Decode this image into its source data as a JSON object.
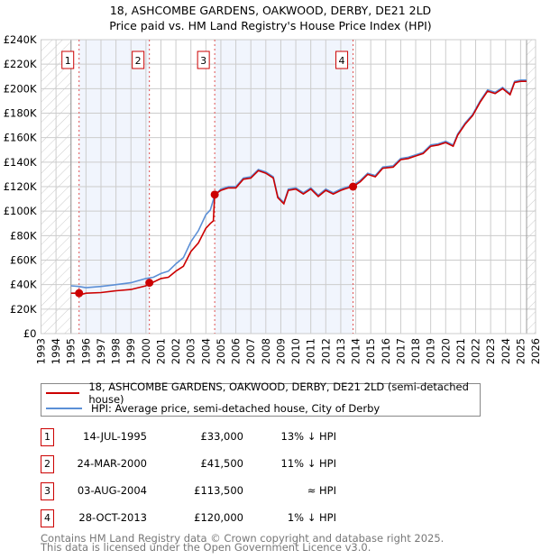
{
  "chart_data": {
    "type": "line",
    "title": "18, ASHCOMBE GARDENS, OAKWOOD, DERBY, DE21 2LD",
    "subtitle": "Price paid vs. HM Land Registry's House Price Index (HPI)",
    "xlim": [
      1993,
      2026
    ],
    "ylim": [
      0,
      240000
    ],
    "x_ticks": [
      "1993",
      "1994",
      "1995",
      "1996",
      "1997",
      "1998",
      "1999",
      "2000",
      "2001",
      "2002",
      "2003",
      "2004",
      "2005",
      "2006",
      "2007",
      "2008",
      "2009",
      "2010",
      "2011",
      "2012",
      "2013",
      "2014",
      "2015",
      "2016",
      "2017",
      "2018",
      "2019",
      "2020",
      "2021",
      "2022",
      "2023",
      "2024",
      "2025",
      "2026"
    ],
    "y_ticks": [
      "£0",
      "£20K",
      "£40K",
      "£60K",
      "£80K",
      "£100K",
      "£120K",
      "£140K",
      "£160K",
      "£180K",
      "£200K",
      "£220K",
      "£240K"
    ],
    "grid": true,
    "data_range": [
      1995.0,
      2025.4
    ],
    "shaded_periods": [
      [
        1995.54,
        2000.23
      ],
      [
        2004.59,
        2013.82
      ]
    ],
    "series": [
      {
        "name": "18, ASHCOMBE GARDENS, OAKWOOD, DERBY, DE21 2LD (semi-detached house)",
        "color": "#cc0000",
        "points": [
          [
            1995.0,
            33000
          ],
          [
            1995.5,
            33000
          ],
          [
            1995.7,
            32000
          ],
          [
            1996,
            33000
          ],
          [
            1997,
            33500
          ],
          [
            1998,
            35000
          ],
          [
            1999,
            36000
          ],
          [
            2000,
            39000
          ],
          [
            2000.23,
            41500
          ],
          [
            2000.5,
            42000
          ],
          [
            2001,
            45000
          ],
          [
            2001.5,
            46000
          ],
          [
            2002,
            51000
          ],
          [
            2002.5,
            55000
          ],
          [
            2003,
            67000
          ],
          [
            2003.5,
            74000
          ],
          [
            2004,
            86000
          ],
          [
            2004.3,
            90000
          ],
          [
            2004.5,
            92000
          ],
          [
            2004.59,
            113500
          ],
          [
            2005,
            117000
          ],
          [
            2005.5,
            119000
          ],
          [
            2006,
            119000
          ],
          [
            2006.5,
            126000
          ],
          [
            2007,
            127000
          ],
          [
            2007.5,
            133000
          ],
          [
            2008,
            131000
          ],
          [
            2008.5,
            127000
          ],
          [
            2008.8,
            111000
          ],
          [
            2009.2,
            106000
          ],
          [
            2009.5,
            117000
          ],
          [
            2010,
            118000
          ],
          [
            2010.5,
            114000
          ],
          [
            2011,
            118000
          ],
          [
            2011.5,
            112000
          ],
          [
            2012,
            117000
          ],
          [
            2012.5,
            114000
          ],
          [
            2013,
            117000
          ],
          [
            2013.5,
            119000
          ],
          [
            2013.82,
            120000
          ],
          [
            2014.3,
            124000
          ],
          [
            2014.8,
            130000
          ],
          [
            2015.3,
            128000
          ],
          [
            2015.8,
            135000
          ],
          [
            2016.5,
            136000
          ],
          [
            2017,
            142000
          ],
          [
            2017.5,
            143000
          ],
          [
            2018,
            145000
          ],
          [
            2018.5,
            147000
          ],
          [
            2019,
            153000
          ],
          [
            2019.5,
            154000
          ],
          [
            2020,
            156000
          ],
          [
            2020.5,
            153000
          ],
          [
            2020.8,
            162000
          ],
          [
            2021.3,
            171000
          ],
          [
            2021.8,
            178000
          ],
          [
            2022.3,
            189000
          ],
          [
            2022.8,
            198000
          ],
          [
            2023.3,
            196000
          ],
          [
            2023.8,
            200000
          ],
          [
            2024.3,
            195000
          ],
          [
            2024.6,
            205000
          ],
          [
            2025,
            206000
          ],
          [
            2025.4,
            206000
          ]
        ]
      },
      {
        "name": "HPI: Average price, semi-detached house, City of Derby",
        "color": "#5b8fd6",
        "points": [
          [
            1995.0,
            39000
          ],
          [
            1995.5,
            38500
          ],
          [
            1996,
            37500
          ],
          [
            1997,
            38500
          ],
          [
            1998,
            40000
          ],
          [
            1999,
            41500
          ],
          [
            2000,
            45000
          ],
          [
            2000.5,
            46000
          ],
          [
            2001,
            49000
          ],
          [
            2001.5,
            51000
          ],
          [
            2002,
            57000
          ],
          [
            2002.5,
            62000
          ],
          [
            2003,
            75000
          ],
          [
            2003.5,
            84000
          ],
          [
            2004,
            97000
          ],
          [
            2004.3,
            101000
          ],
          [
            2004.59,
            113000
          ],
          [
            2005,
            118000
          ],
          [
            2005.5,
            120000
          ],
          [
            2006,
            120000
          ],
          [
            2006.5,
            127000
          ],
          [
            2007,
            128000
          ],
          [
            2007.5,
            134000
          ],
          [
            2008,
            132000
          ],
          [
            2008.5,
            128000
          ],
          [
            2008.8,
            112000
          ],
          [
            2009.2,
            107000
          ],
          [
            2009.5,
            118000
          ],
          [
            2010,
            119000
          ],
          [
            2010.5,
            115000
          ],
          [
            2011,
            119000
          ],
          [
            2011.5,
            113000
          ],
          [
            2012,
            118000
          ],
          [
            2012.5,
            115000
          ],
          [
            2013,
            118000
          ],
          [
            2013.5,
            120000
          ],
          [
            2013.82,
            121000
          ],
          [
            2014.3,
            125000
          ],
          [
            2014.8,
            131000
          ],
          [
            2015.3,
            129000
          ],
          [
            2015.8,
            136000
          ],
          [
            2016.5,
            137000
          ],
          [
            2017,
            143000
          ],
          [
            2017.5,
            144000
          ],
          [
            2018,
            146000
          ],
          [
            2018.5,
            148000
          ],
          [
            2019,
            154000
          ],
          [
            2019.5,
            155000
          ],
          [
            2020,
            157000
          ],
          [
            2020.5,
            154000
          ],
          [
            2020.8,
            163000
          ],
          [
            2021.3,
            172000
          ],
          [
            2021.8,
            179000
          ],
          [
            2022.3,
            190000
          ],
          [
            2022.8,
            199000
          ],
          [
            2023.3,
            197000
          ],
          [
            2023.8,
            201000
          ],
          [
            2024.3,
            196000
          ],
          [
            2024.6,
            206000
          ],
          [
            2025,
            207000
          ],
          [
            2025.4,
            207000
          ]
        ]
      }
    ],
    "sales": [
      {
        "label": "1",
        "x": 1995.54,
        "price": 33000,
        "date": "14-JUL-1995",
        "price_text": "£33,000",
        "vs_hpi": "13% ↓ HPI"
      },
      {
        "label": "2",
        "x": 2000.23,
        "price": 41500,
        "date": "24-MAR-2000",
        "price_text": "£41,500",
        "vs_hpi": "11% ↓ HPI"
      },
      {
        "label": "3",
        "x": 2004.59,
        "price": 113500,
        "date": "03-AUG-2004",
        "price_text": "£113,500",
        "vs_hpi": "≈ HPI"
      },
      {
        "label": "4",
        "x": 2013.82,
        "price": 120000,
        "date": "28-OCT-2013",
        "price_text": "£120,000",
        "vs_hpi": "1% ↓ HPI"
      }
    ]
  },
  "footer": {
    "line1": "Contains HM Land Registry data © Crown copyright and database right 2025.",
    "line2": "This data is licensed under the Open Government Licence v3.0."
  }
}
